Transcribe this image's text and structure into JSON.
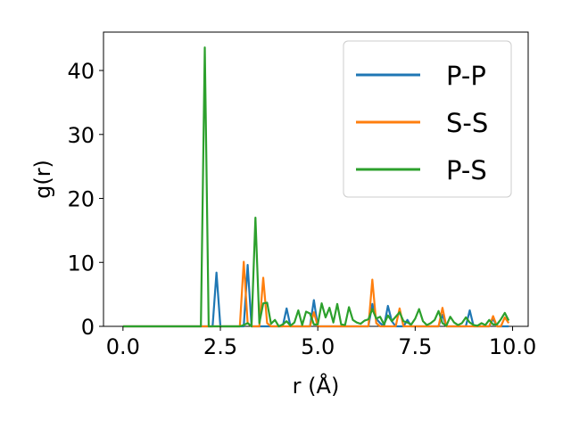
{
  "chart_data": {
    "type": "line",
    "xlabel": "r (Å)",
    "ylabel": "g(r)",
    "xlim": [
      -0.5,
      10.4
    ],
    "ylim": [
      0,
      46
    ],
    "xticks": [
      0.0,
      2.5,
      5.0,
      7.5,
      10.0
    ],
    "xtick_labels": [
      "0.0",
      "2.5",
      "5.0",
      "7.5",
      "10.0"
    ],
    "yticks": [
      0,
      10,
      20,
      30,
      40
    ],
    "ytick_labels": [
      "0",
      "10",
      "20",
      "30",
      "40"
    ],
    "grid": false,
    "legend_position": "top-right",
    "series": [
      {
        "name": "P-P",
        "color": "#1f77b4",
        "points": [
          [
            0,
            0
          ],
          [
            2.3,
            0
          ],
          [
            2.4,
            8.4
          ],
          [
            2.5,
            0
          ],
          [
            3.1,
            0
          ],
          [
            3.2,
            9.6
          ],
          [
            3.3,
            0
          ],
          [
            4.1,
            0
          ],
          [
            4.2,
            2.8
          ],
          [
            4.3,
            0
          ],
          [
            4.8,
            0
          ],
          [
            4.9,
            4.1
          ],
          [
            5.0,
            0
          ],
          [
            6.3,
            0
          ],
          [
            6.4,
            3.5
          ],
          [
            6.5,
            1.2
          ],
          [
            6.6,
            0.5
          ],
          [
            6.7,
            0
          ],
          [
            6.8,
            3.2
          ],
          [
            6.9,
            0.8
          ],
          [
            7.0,
            0
          ],
          [
            7.2,
            0
          ],
          [
            7.3,
            1.0
          ],
          [
            7.4,
            0
          ],
          [
            8.1,
            0
          ],
          [
            8.2,
            1.8
          ],
          [
            8.3,
            0
          ],
          [
            8.8,
            0
          ],
          [
            8.9,
            2.5
          ],
          [
            9.0,
            0
          ],
          [
            9.4,
            0
          ],
          [
            9.5,
            1.2
          ],
          [
            9.6,
            0
          ],
          [
            9.9,
            0
          ]
        ]
      },
      {
        "name": "S-S",
        "color": "#ff7f0e",
        "points": [
          [
            0,
            0
          ],
          [
            3.0,
            0
          ],
          [
            3.1,
            10.1
          ],
          [
            3.2,
            0.5
          ],
          [
            3.3,
            0
          ],
          [
            3.5,
            0
          ],
          [
            3.6,
            7.6
          ],
          [
            3.7,
            0.5
          ],
          [
            3.8,
            0
          ],
          [
            4.8,
            0
          ],
          [
            4.9,
            2.2
          ],
          [
            5.0,
            0
          ],
          [
            6.3,
            0
          ],
          [
            6.4,
            7.3
          ],
          [
            6.5,
            0.5
          ],
          [
            6.6,
            0
          ],
          [
            7.0,
            0
          ],
          [
            7.1,
            2.8
          ],
          [
            7.2,
            0
          ],
          [
            8.1,
            0
          ],
          [
            8.2,
            2.9
          ],
          [
            8.3,
            0
          ],
          [
            9.4,
            0
          ],
          [
            9.5,
            1.6
          ],
          [
            9.6,
            0
          ],
          [
            9.7,
            0
          ],
          [
            9.8,
            1.4
          ],
          [
            9.9,
            0.5
          ]
        ]
      },
      {
        "name": "P-S",
        "color": "#2ca02c",
        "points": [
          [
            0,
            0
          ],
          [
            0.5,
            0
          ],
          [
            1.0,
            0
          ],
          [
            1.5,
            0
          ],
          [
            2.0,
            0
          ],
          [
            2.1,
            43.6
          ],
          [
            2.2,
            0
          ],
          [
            2.8,
            0
          ],
          [
            2.9,
            0
          ],
          [
            3.0,
            0
          ],
          [
            3.1,
            0.2
          ],
          [
            3.2,
            0.5
          ],
          [
            3.3,
            0
          ],
          [
            3.4,
            17.0
          ],
          [
            3.5,
            0.5
          ],
          [
            3.6,
            3.6
          ],
          [
            3.7,
            3.7
          ],
          [
            3.8,
            0.4
          ],
          [
            3.9,
            1.0
          ],
          [
            4.0,
            0
          ],
          [
            4.1,
            0.3
          ],
          [
            4.2,
            0.8
          ],
          [
            4.3,
            0.1
          ],
          [
            4.4,
            0.6
          ],
          [
            4.5,
            2.5
          ],
          [
            4.6,
            0.2
          ],
          [
            4.7,
            2.3
          ],
          [
            4.8,
            2.0
          ],
          [
            4.9,
            0.3
          ],
          [
            5.0,
            0.3
          ],
          [
            5.1,
            3.6
          ],
          [
            5.2,
            1.4
          ],
          [
            5.3,
            2.9
          ],
          [
            5.4,
            0.6
          ],
          [
            5.5,
            3.5
          ],
          [
            5.6,
            0.3
          ],
          [
            5.7,
            0.2
          ],
          [
            5.8,
            3.0
          ],
          [
            5.9,
            1.0
          ],
          [
            6.0,
            0.6
          ],
          [
            6.1,
            0.4
          ],
          [
            6.2,
            0.9
          ],
          [
            6.3,
            1.1
          ],
          [
            6.4,
            2.7
          ],
          [
            6.5,
            1.2
          ],
          [
            6.6,
            1.5
          ],
          [
            6.7,
            0.3
          ],
          [
            6.8,
            1.7
          ],
          [
            6.9,
            0.8
          ],
          [
            7.0,
            1.5
          ],
          [
            7.1,
            2.2
          ],
          [
            7.2,
            0.8
          ],
          [
            7.3,
            0.6
          ],
          [
            7.4,
            0.3
          ],
          [
            7.5,
            1.2
          ],
          [
            7.6,
            2.7
          ],
          [
            7.7,
            0.8
          ],
          [
            7.8,
            0.2
          ],
          [
            7.9,
            0.5
          ],
          [
            8.0,
            1.0
          ],
          [
            8.1,
            2.4
          ],
          [
            8.2,
            0.5
          ],
          [
            8.3,
            0.1
          ],
          [
            8.4,
            1.5
          ],
          [
            8.5,
            0.6
          ],
          [
            8.6,
            0.2
          ],
          [
            8.7,
            0.5
          ],
          [
            8.8,
            1.4
          ],
          [
            8.9,
            0.6
          ],
          [
            9.0,
            0.2
          ],
          [
            9.1,
            0.1
          ],
          [
            9.2,
            0.5
          ],
          [
            9.3,
            0.2
          ],
          [
            9.4,
            1.0
          ],
          [
            9.5,
            0.3
          ],
          [
            9.6,
            0.3
          ],
          [
            9.7,
            1.1
          ],
          [
            9.8,
            2.1
          ],
          [
            9.9,
            0.9
          ]
        ]
      }
    ]
  }
}
